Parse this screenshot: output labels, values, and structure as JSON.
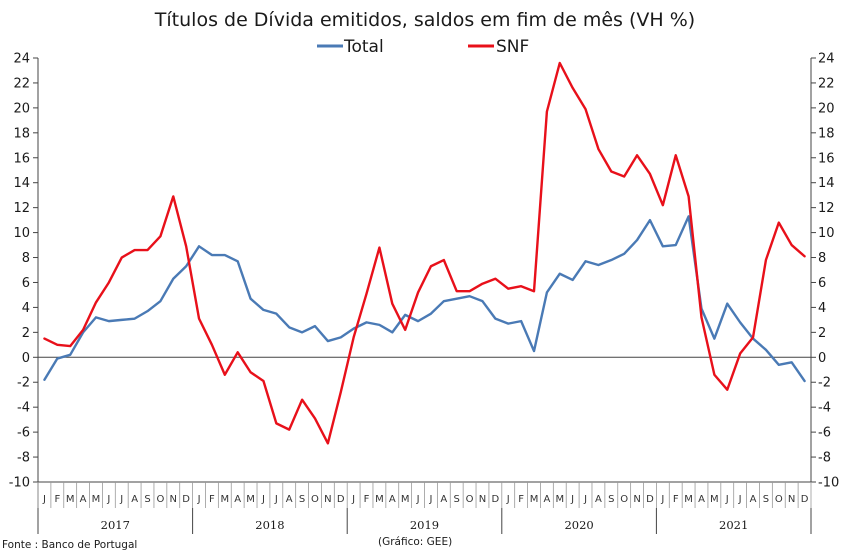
{
  "chart_data": {
    "type": "line",
    "title": "Títulos de Dívida emitidos, saldos em fim de mês  (VH %)",
    "ylim": [
      -10,
      24
    ],
    "yticks": [
      -10,
      -8,
      -6,
      -4,
      -2,
      0,
      2,
      4,
      6,
      8,
      10,
      12,
      14,
      16,
      18,
      20,
      22,
      24
    ],
    "secondary_y": true,
    "legend_position": "top-center",
    "grid": false,
    "month_labels": [
      "J",
      "F",
      "M",
      "A",
      "M",
      "J",
      "J",
      "A",
      "S",
      "O",
      "N",
      "D",
      "J",
      "F",
      "M",
      "A",
      "M",
      "J",
      "J",
      "A",
      "S",
      "O",
      "N",
      "D",
      "J",
      "F",
      "M",
      "A",
      "M",
      "J",
      "J",
      "A",
      "S",
      "O",
      "N",
      "D",
      "J",
      "F",
      "M",
      "A",
      "M",
      "J",
      "J",
      "A",
      "S",
      "O",
      "N",
      "D",
      "J",
      "F",
      "M",
      "A",
      "M",
      "J",
      "J",
      "A",
      "S",
      "O",
      "N",
      "D"
    ],
    "years": [
      "2017",
      "2018",
      "2019",
      "2020",
      "2021"
    ],
    "series": [
      {
        "name": "Total",
        "color": "#4a7ab5",
        "values": [
          -1.8,
          -0.1,
          0.2,
          2.0,
          3.2,
          2.9,
          3.0,
          3.1,
          3.7,
          4.5,
          6.3,
          7.3,
          8.9,
          8.2,
          8.2,
          7.7,
          4.7,
          3.8,
          3.5,
          2.4,
          2.0,
          2.5,
          1.3,
          1.6,
          2.3,
          2.8,
          2.6,
          2.0,
          3.4,
          2.9,
          3.5,
          4.5,
          4.7,
          4.9,
          4.5,
          3.1,
          2.7,
          2.9,
          0.5,
          5.2,
          6.7,
          6.2,
          7.7,
          7.4,
          7.8,
          8.3,
          9.4,
          11.0,
          8.9,
          9.0,
          11.3,
          3.9,
          1.5,
          4.3,
          2.8,
          1.5,
          0.6,
          -0.6,
          -0.4,
          -1.9
        ]
      },
      {
        "name": "SNF",
        "color": "#e8101a",
        "values": [
          1.5,
          1.0,
          0.9,
          2.2,
          4.4,
          6.0,
          8.0,
          8.6,
          8.6,
          9.7,
          12.9,
          8.9,
          3.1,
          1.0,
          -1.4,
          0.4,
          -1.2,
          -1.9,
          -5.3,
          -5.8,
          -3.4,
          -4.9,
          -6.9,
          -2.8,
          1.6,
          5.1,
          8.8,
          4.3,
          2.2,
          5.2,
          7.3,
          7.8,
          5.3,
          5.3,
          5.9,
          6.3,
          5.5,
          5.7,
          5.3,
          19.7,
          23.6,
          21.6,
          19.9,
          16.7,
          14.9,
          14.5,
          16.2,
          14.7,
          12.2,
          16.2,
          12.9,
          3.2,
          -1.4,
          -2.6,
          0.3,
          1.6,
          7.8,
          10.8,
          9.0,
          8.1
        ]
      }
    ]
  },
  "footer": {
    "source": "Fonte : Banco de Portugal",
    "credit": "(Gráfico: GEE)"
  }
}
